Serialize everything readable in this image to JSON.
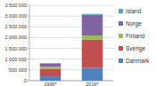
{
  "chart_data": {
    "type": "bar",
    "stacked": true,
    "legend": "right",
    "grid": true,
    "categories": [
      "1996*",
      "2016*"
    ],
    "series": [
      {
        "name": "Danmark",
        "color": "#4f81bd",
        "values": [
          200000,
          600000
        ]
      },
      {
        "name": "Sverige",
        "color": "#c0504d",
        "values": [
          350000,
          1300000
        ]
      },
      {
        "name": "Finland",
        "color": "#9bbb59",
        "values": [
          100000,
          200000
        ]
      },
      {
        "name": "Norge",
        "color": "#8064a2",
        "values": [
          150000,
          950000
        ]
      },
      {
        "name": "Island",
        "color": "#4bacc6",
        "values": [
          20000,
          50000
        ]
      }
    ],
    "ylim": [
      0,
      3500000
    ],
    "yticks": [
      0,
      {
        "value": 500000,
        "label": "500 000"
      },
      {
        "value": 1000000,
        "label": "1 000 000"
      },
      {
        "value": 1500000,
        "label": "1 500 000"
      },
      {
        "value": 2000000,
        "label": "2 000 000"
      },
      {
        "value": 2500000,
        "label": "2 500 000"
      },
      {
        "value": 3000000,
        "label": "3 000 000"
      },
      {
        "value": 3500000,
        "label": "3 500 000"
      }
    ]
  }
}
